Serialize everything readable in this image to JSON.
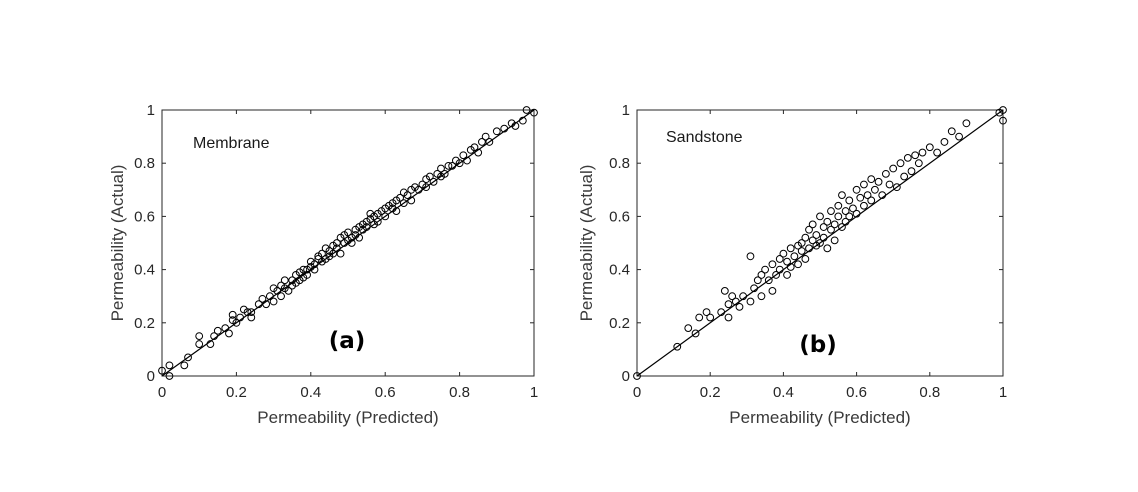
{
  "chart_data": [
    {
      "type": "scatter",
      "panel_label": "(a)",
      "annotation": "Membrane",
      "xlabel": "Permeability (Predicted)",
      "ylabel": "Permeability (Actual)",
      "xlim": [
        0,
        1
      ],
      "ylim": [
        0,
        1
      ],
      "xticks": [
        "0",
        "0.2",
        "0.4",
        "0.6",
        "0.8",
        "1"
      ],
      "yticks": [
        "0",
        "0.2",
        "0.4",
        "0.6",
        "0.8",
        "1"
      ],
      "reference_line": {
        "from": [
          0,
          0
        ],
        "to": [
          1,
          1
        ]
      },
      "marker": "open-circle",
      "series": [
        {
          "name": "Membrane",
          "points": [
            [
              0.0,
              0.02
            ],
            [
              0.02,
              0.04
            ],
            [
              0.02,
              0.0
            ],
            [
              0.06,
              0.04
            ],
            [
              0.07,
              0.07
            ],
            [
              0.1,
              0.12
            ],
            [
              0.1,
              0.15
            ],
            [
              0.13,
              0.12
            ],
            [
              0.14,
              0.15
            ],
            [
              0.15,
              0.17
            ],
            [
              0.17,
              0.18
            ],
            [
              0.18,
              0.16
            ],
            [
              0.19,
              0.21
            ],
            [
              0.19,
              0.23
            ],
            [
              0.2,
              0.2
            ],
            [
              0.21,
              0.22
            ],
            [
              0.22,
              0.25
            ],
            [
              0.23,
              0.24
            ],
            [
              0.24,
              0.22
            ],
            [
              0.24,
              0.24
            ],
            [
              0.26,
              0.27
            ],
            [
              0.27,
              0.29
            ],
            [
              0.28,
              0.27
            ],
            [
              0.29,
              0.3
            ],
            [
              0.3,
              0.28
            ],
            [
              0.3,
              0.33
            ],
            [
              0.31,
              0.32
            ],
            [
              0.32,
              0.3
            ],
            [
              0.32,
              0.34
            ],
            [
              0.33,
              0.33
            ],
            [
              0.33,
              0.36
            ],
            [
              0.34,
              0.32
            ],
            [
              0.35,
              0.36
            ],
            [
              0.35,
              0.34
            ],
            [
              0.36,
              0.38
            ],
            [
              0.36,
              0.35
            ],
            [
              0.37,
              0.36
            ],
            [
              0.37,
              0.39
            ],
            [
              0.38,
              0.4
            ],
            [
              0.38,
              0.37
            ],
            [
              0.39,
              0.4
            ],
            [
              0.39,
              0.38
            ],
            [
              0.4,
              0.41
            ],
            [
              0.4,
              0.43
            ],
            [
              0.41,
              0.42
            ],
            [
              0.41,
              0.4
            ],
            [
              0.42,
              0.44
            ],
            [
              0.42,
              0.45
            ],
            [
              0.43,
              0.43
            ],
            [
              0.43,
              0.46
            ],
            [
              0.44,
              0.44
            ],
            [
              0.44,
              0.48
            ],
            [
              0.45,
              0.45
            ],
            [
              0.45,
              0.47
            ],
            [
              0.46,
              0.46
            ],
            [
              0.46,
              0.49
            ],
            [
              0.47,
              0.48
            ],
            [
              0.47,
              0.5
            ],
            [
              0.48,
              0.46
            ],
            [
              0.48,
              0.52
            ],
            [
              0.49,
              0.5
            ],
            [
              0.49,
              0.53
            ],
            [
              0.5,
              0.51
            ],
            [
              0.5,
              0.54
            ],
            [
              0.51,
              0.52
            ],
            [
              0.51,
              0.5
            ],
            [
              0.52,
              0.53
            ],
            [
              0.52,
              0.55
            ],
            [
              0.53,
              0.56
            ],
            [
              0.53,
              0.52
            ],
            [
              0.54,
              0.57
            ],
            [
              0.54,
              0.55
            ],
            [
              0.55,
              0.58
            ],
            [
              0.55,
              0.56
            ],
            [
              0.56,
              0.59
            ],
            [
              0.56,
              0.61
            ],
            [
              0.57,
              0.57
            ],
            [
              0.57,
              0.6
            ],
            [
              0.58,
              0.61
            ],
            [
              0.58,
              0.58
            ],
            [
              0.59,
              0.62
            ],
            [
              0.6,
              0.6
            ],
            [
              0.6,
              0.63
            ],
            [
              0.61,
              0.64
            ],
            [
              0.62,
              0.63
            ],
            [
              0.62,
              0.65
            ],
            [
              0.63,
              0.66
            ],
            [
              0.63,
              0.62
            ],
            [
              0.64,
              0.67
            ],
            [
              0.65,
              0.65
            ],
            [
              0.65,
              0.69
            ],
            [
              0.66,
              0.68
            ],
            [
              0.67,
              0.66
            ],
            [
              0.67,
              0.7
            ],
            [
              0.68,
              0.71
            ],
            [
              0.69,
              0.7
            ],
            [
              0.7,
              0.72
            ],
            [
              0.71,
              0.71
            ],
            [
              0.71,
              0.74
            ],
            [
              0.72,
              0.75
            ],
            [
              0.73,
              0.73
            ],
            [
              0.74,
              0.76
            ],
            [
              0.75,
              0.75
            ],
            [
              0.75,
              0.78
            ],
            [
              0.76,
              0.76
            ],
            [
              0.77,
              0.79
            ],
            [
              0.78,
              0.79
            ],
            [
              0.79,
              0.81
            ],
            [
              0.8,
              0.8
            ],
            [
              0.81,
              0.83
            ],
            [
              0.82,
              0.81
            ],
            [
              0.83,
              0.85
            ],
            [
              0.84,
              0.86
            ],
            [
              0.85,
              0.84
            ],
            [
              0.86,
              0.88
            ],
            [
              0.87,
              0.9
            ],
            [
              0.88,
              0.88
            ],
            [
              0.9,
              0.92
            ],
            [
              0.92,
              0.93
            ],
            [
              0.94,
              0.95
            ],
            [
              0.95,
              0.94
            ],
            [
              0.97,
              0.96
            ],
            [
              0.98,
              1.0
            ],
            [
              1.0,
              0.99
            ]
          ]
        }
      ]
    },
    {
      "type": "scatter",
      "panel_label": "(b)",
      "annotation": "Sandstone",
      "xlabel": "Permeability (Predicted)",
      "ylabel": "Permeability (Actual)",
      "xlim": [
        0,
        1
      ],
      "ylim": [
        0,
        1
      ],
      "xticks": [
        "0",
        "0.2",
        "0.4",
        "0.6",
        "0.8",
        "1"
      ],
      "yticks": [
        "0",
        "0.2",
        "0.4",
        "0.6",
        "0.8",
        "1"
      ],
      "reference_line": {
        "from": [
          0,
          0
        ],
        "to": [
          1,
          1
        ]
      },
      "marker": "open-circle",
      "series": [
        {
          "name": "Sandstone",
          "points": [
            [
              0.0,
              0.0
            ],
            [
              0.11,
              0.11
            ],
            [
              0.14,
              0.18
            ],
            [
              0.16,
              0.16
            ],
            [
              0.17,
              0.22
            ],
            [
              0.19,
              0.24
            ],
            [
              0.2,
              0.22
            ],
            [
              0.23,
              0.24
            ],
            [
              0.24,
              0.32
            ],
            [
              0.25,
              0.27
            ],
            [
              0.25,
              0.22
            ],
            [
              0.26,
              0.3
            ],
            [
              0.27,
              0.28
            ],
            [
              0.28,
              0.26
            ],
            [
              0.29,
              0.3
            ],
            [
              0.31,
              0.28
            ],
            [
              0.31,
              0.45
            ],
            [
              0.32,
              0.33
            ],
            [
              0.33,
              0.36
            ],
            [
              0.34,
              0.38
            ],
            [
              0.34,
              0.3
            ],
            [
              0.35,
              0.4
            ],
            [
              0.36,
              0.36
            ],
            [
              0.37,
              0.32
            ],
            [
              0.37,
              0.42
            ],
            [
              0.38,
              0.38
            ],
            [
              0.39,
              0.44
            ],
            [
              0.39,
              0.4
            ],
            [
              0.4,
              0.46
            ],
            [
              0.41,
              0.38
            ],
            [
              0.41,
              0.43
            ],
            [
              0.42,
              0.48
            ],
            [
              0.42,
              0.41
            ],
            [
              0.43,
              0.45
            ],
            [
              0.44,
              0.49
            ],
            [
              0.44,
              0.42
            ],
            [
              0.45,
              0.5
            ],
            [
              0.45,
              0.47
            ],
            [
              0.46,
              0.52
            ],
            [
              0.46,
              0.44
            ],
            [
              0.47,
              0.55
            ],
            [
              0.47,
              0.48
            ],
            [
              0.48,
              0.51
            ],
            [
              0.48,
              0.57
            ],
            [
              0.49,
              0.49
            ],
            [
              0.49,
              0.53
            ],
            [
              0.5,
              0.6
            ],
            [
              0.5,
              0.5
            ],
            [
              0.51,
              0.56
            ],
            [
              0.51,
              0.52
            ],
            [
              0.52,
              0.58
            ],
            [
              0.52,
              0.48
            ],
            [
              0.53,
              0.55
            ],
            [
              0.53,
              0.62
            ],
            [
              0.54,
              0.57
            ],
            [
              0.54,
              0.51
            ],
            [
              0.55,
              0.6
            ],
            [
              0.55,
              0.64
            ],
            [
              0.56,
              0.56
            ],
            [
              0.56,
              0.68
            ],
            [
              0.57,
              0.62
            ],
            [
              0.57,
              0.58
            ],
            [
              0.58,
              0.66
            ],
            [
              0.58,
              0.6
            ],
            [
              0.59,
              0.63
            ],
            [
              0.6,
              0.7
            ],
            [
              0.6,
              0.61
            ],
            [
              0.61,
              0.67
            ],
            [
              0.62,
              0.64
            ],
            [
              0.62,
              0.72
            ],
            [
              0.63,
              0.68
            ],
            [
              0.64,
              0.74
            ],
            [
              0.64,
              0.66
            ],
            [
              0.65,
              0.7
            ],
            [
              0.66,
              0.73
            ],
            [
              0.67,
              0.68
            ],
            [
              0.68,
              0.76
            ],
            [
              0.69,
              0.72
            ],
            [
              0.7,
              0.78
            ],
            [
              0.71,
              0.71
            ],
            [
              0.72,
              0.8
            ],
            [
              0.73,
              0.75
            ],
            [
              0.74,
              0.82
            ],
            [
              0.75,
              0.77
            ],
            [
              0.76,
              0.83
            ],
            [
              0.77,
              0.8
            ],
            [
              0.78,
              0.84
            ],
            [
              0.8,
              0.86
            ],
            [
              0.82,
              0.84
            ],
            [
              0.84,
              0.88
            ],
            [
              0.86,
              0.92
            ],
            [
              0.88,
              0.9
            ],
            [
              0.9,
              0.95
            ],
            [
              0.99,
              0.99
            ],
            [
              1.0,
              1.0
            ],
            [
              1.0,
              0.96
            ]
          ]
        }
      ]
    }
  ]
}
